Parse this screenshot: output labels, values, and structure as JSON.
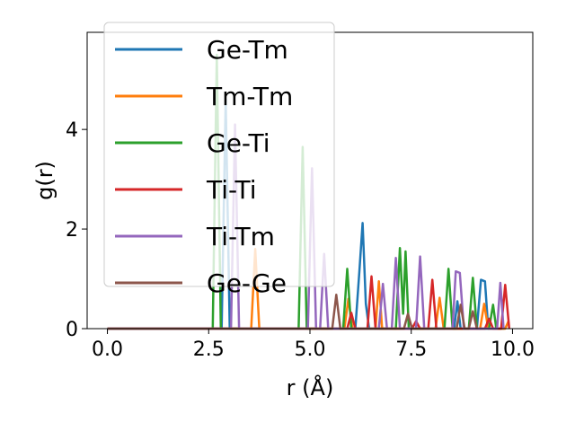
{
  "chart_data": {
    "type": "line",
    "xlabel": "r (Å)",
    "ylabel": "g(r)",
    "xlim": [
      -0.5,
      10.5
    ],
    "ylim": [
      0,
      5.95
    ],
    "xticks": [
      0.0,
      2.5,
      5.0,
      7.5,
      10.0
    ],
    "xtick_labels": [
      "0.0",
      "2.5",
      "5.0",
      "7.5",
      "10.0"
    ],
    "yticks": [
      0,
      2,
      4
    ],
    "ytick_labels": [
      "0",
      "2",
      "4"
    ],
    "grid": false,
    "legend_position": "top-left",
    "series": [
      {
        "name": "Ge-Tm",
        "color": "#1f77b4",
        "points": [
          [
            0,
            0
          ],
          [
            2.82,
            0
          ],
          [
            2.92,
            4.6
          ],
          [
            3.02,
            0
          ],
          [
            6.12,
            0
          ],
          [
            6.22,
            1.15
          ],
          [
            6.3,
            2.12
          ],
          [
            6.38,
            0.5
          ],
          [
            6.46,
            0
          ],
          [
            8.56,
            0
          ],
          [
            8.64,
            0.55
          ],
          [
            8.72,
            0
          ],
          [
            9.12,
            0
          ],
          [
            9.22,
            0.98
          ],
          [
            9.32,
            0.95
          ],
          [
            9.4,
            0
          ],
          [
            9.8,
            0
          ]
        ]
      },
      {
        "name": "Tm-Tm",
        "color": "#ff7f0e",
        "points": [
          [
            0,
            0
          ],
          [
            3.55,
            0
          ],
          [
            3.65,
            1.6
          ],
          [
            3.75,
            0
          ],
          [
            5.85,
            0
          ],
          [
            5.95,
            0.6
          ],
          [
            6.05,
            0
          ],
          [
            6.62,
            0
          ],
          [
            6.7,
            0.95
          ],
          [
            6.78,
            0
          ],
          [
            8.1,
            0
          ],
          [
            8.2,
            0.62
          ],
          [
            8.3,
            0
          ],
          [
            9.2,
            0
          ],
          [
            9.3,
            0.5
          ],
          [
            9.4,
            0
          ],
          [
            9.82,
            0
          ],
          [
            9.9,
            0.15
          ]
        ]
      },
      {
        "name": "Ge-Ti",
        "color": "#2ca02c",
        "points": [
          [
            0,
            0
          ],
          [
            2.6,
            0
          ],
          [
            2.7,
            5.5
          ],
          [
            2.8,
            0
          ],
          [
            4.72,
            0
          ],
          [
            4.82,
            3.65
          ],
          [
            4.92,
            0
          ],
          [
            5.82,
            0
          ],
          [
            5.92,
            1.2
          ],
          [
            6.02,
            0
          ],
          [
            7.12,
            0
          ],
          [
            7.22,
            1.62
          ],
          [
            7.3,
            0.3
          ],
          [
            7.36,
            1.55
          ],
          [
            7.44,
            0
          ],
          [
            8.32,
            0
          ],
          [
            8.42,
            1.2
          ],
          [
            8.52,
            0
          ],
          [
            8.92,
            0
          ],
          [
            9.02,
            1.02
          ],
          [
            9.12,
            0
          ],
          [
            9.42,
            0
          ],
          [
            9.52,
            0.48
          ],
          [
            9.6,
            0
          ]
        ]
      },
      {
        "name": "Ti-Ti",
        "color": "#d62728",
        "points": [
          [
            0,
            0
          ],
          [
            5.92,
            0
          ],
          [
            6.02,
            0.32
          ],
          [
            6.12,
            0
          ],
          [
            6.42,
            0
          ],
          [
            6.52,
            1.05
          ],
          [
            6.62,
            0
          ],
          [
            7.52,
            0
          ],
          [
            7.62,
            0.15
          ],
          [
            7.72,
            0
          ],
          [
            7.92,
            0
          ],
          [
            8.02,
            0.98
          ],
          [
            8.12,
            0
          ],
          [
            9.32,
            0
          ],
          [
            9.42,
            0.2
          ],
          [
            9.52,
            0
          ],
          [
            9.72,
            0
          ],
          [
            9.82,
            0.88
          ],
          [
            9.92,
            0
          ]
        ]
      },
      {
        "name": "Ti-Tm",
        "color": "#9467bd",
        "points": [
          [
            0,
            0
          ],
          [
            3.05,
            0
          ],
          [
            3.15,
            4.1
          ],
          [
            3.25,
            0
          ],
          [
            4.95,
            0
          ],
          [
            5.05,
            3.22
          ],
          [
            5.15,
            0
          ],
          [
            5.25,
            0
          ],
          [
            5.35,
            1.5
          ],
          [
            5.45,
            0
          ],
          [
            6.7,
            0
          ],
          [
            6.8,
            0.9
          ],
          [
            6.9,
            0
          ],
          [
            7.02,
            0
          ],
          [
            7.12,
            1.42
          ],
          [
            7.22,
            0
          ],
          [
            7.62,
            0
          ],
          [
            7.72,
            1.45
          ],
          [
            7.82,
            0
          ],
          [
            8.52,
            0
          ],
          [
            8.6,
            1.15
          ],
          [
            8.7,
            1.12
          ],
          [
            8.8,
            0
          ],
          [
            9.62,
            0
          ],
          [
            9.7,
            0.92
          ],
          [
            9.78,
            0
          ]
        ]
      },
      {
        "name": "Ge-Ge",
        "color": "#8c564b",
        "points": [
          [
            0,
            0
          ],
          [
            5.55,
            0
          ],
          [
            5.65,
            0.68
          ],
          [
            5.75,
            0
          ],
          [
            7.32,
            0
          ],
          [
            7.42,
            0.3
          ],
          [
            7.52,
            0
          ],
          [
            8.62,
            0
          ],
          [
            8.72,
            0.48
          ],
          [
            8.82,
            0
          ],
          [
            8.92,
            0
          ],
          [
            9.02,
            0.35
          ],
          [
            9.12,
            0
          ]
        ]
      }
    ]
  }
}
